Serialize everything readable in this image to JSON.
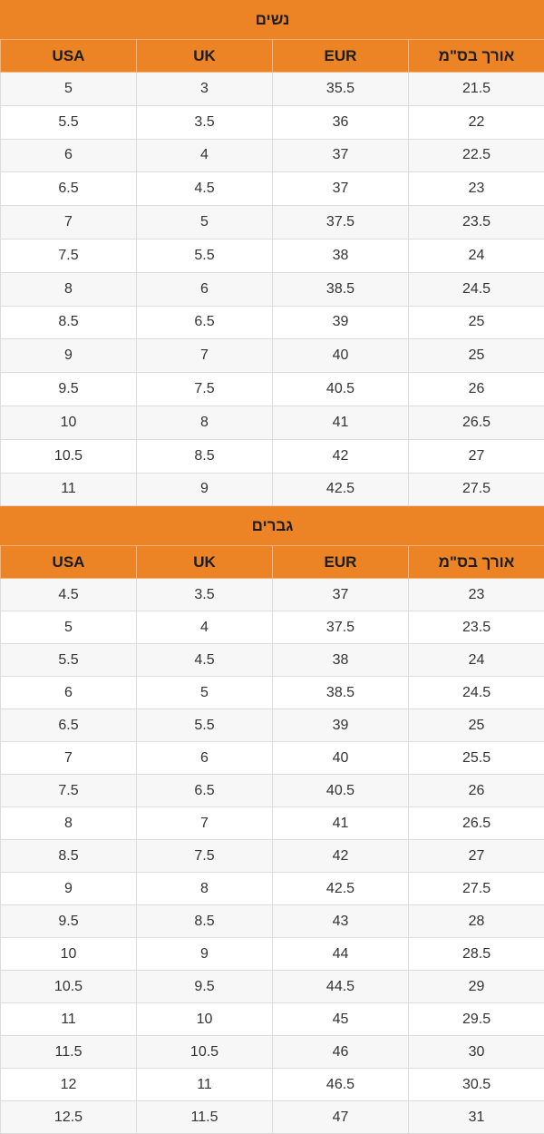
{
  "colors": {
    "header_bg": "#ec8325",
    "row_alt": "#f7f7f7",
    "row": "#ffffff",
    "border": "#dcdcdc"
  },
  "columns": [
    "USA",
    "UK",
    "EUR",
    "אורך בס\"מ"
  ],
  "women": {
    "title": "נשים",
    "rows": [
      [
        "5",
        "3",
        "35.5",
        "21.5"
      ],
      [
        "5.5",
        "3.5",
        "36",
        "22"
      ],
      [
        "6",
        "4",
        "37",
        "22.5"
      ],
      [
        "6.5",
        "4.5",
        "37",
        "23"
      ],
      [
        "7",
        "5",
        "37.5",
        "23.5"
      ],
      [
        "7.5",
        "5.5",
        "38",
        "24"
      ],
      [
        "8",
        "6",
        "38.5",
        "24.5"
      ],
      [
        "8.5",
        "6.5",
        "39",
        "25"
      ],
      [
        "9",
        "7",
        "40",
        "25"
      ],
      [
        "9.5",
        "7.5",
        "40.5",
        "26"
      ],
      [
        "10",
        "8",
        "41",
        "26.5"
      ],
      [
        "10.5",
        "8.5",
        "42",
        "27"
      ],
      [
        "11",
        "9",
        "42.5",
        "27.5"
      ]
    ]
  },
  "men": {
    "title": "גברים",
    "rows": [
      [
        "4.5",
        "3.5",
        "37",
        "23"
      ],
      [
        "5",
        "4",
        "37.5",
        "23.5"
      ],
      [
        "5.5",
        "4.5",
        "38",
        "24"
      ],
      [
        "6",
        "5",
        "38.5",
        "24.5"
      ],
      [
        "6.5",
        "5.5",
        "39",
        "25"
      ],
      [
        "7",
        "6",
        "40",
        "25.5"
      ],
      [
        "7.5",
        "6.5",
        "40.5",
        "26"
      ],
      [
        "8",
        "7",
        "41",
        "26.5"
      ],
      [
        "8.5",
        "7.5",
        "42",
        "27"
      ],
      [
        "9",
        "8",
        "42.5",
        "27.5"
      ],
      [
        "9.5",
        "8.5",
        "43",
        "28"
      ],
      [
        "10",
        "9",
        "44",
        "28.5"
      ],
      [
        "10.5",
        "9.5",
        "44.5",
        "29"
      ],
      [
        "11",
        "10",
        "45",
        "29.5"
      ],
      [
        "11.5",
        "10.5",
        "46",
        "30"
      ],
      [
        "12",
        "11",
        "46.5",
        "30.5"
      ],
      [
        "12.5",
        "11.5",
        "47",
        "31"
      ]
    ]
  }
}
